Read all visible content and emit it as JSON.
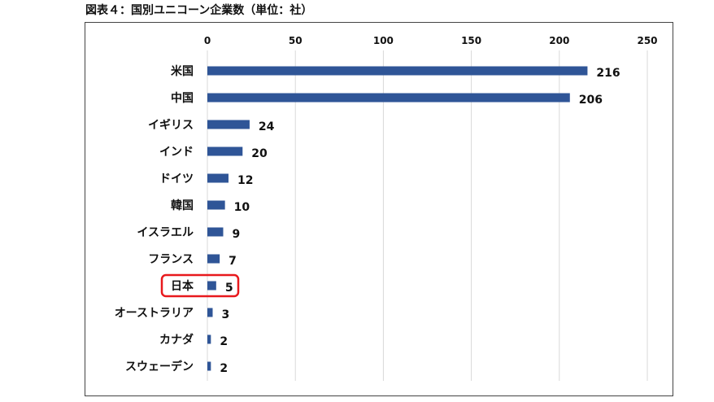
{
  "title": "図表４：国別ユニコーン企業数（単位：社）",
  "chart_data": {
    "type": "bar",
    "orientation": "horizontal",
    "categories": [
      "米国",
      "中国",
      "イギリス",
      "インド",
      "ドイツ",
      "韓国",
      "イスラエル",
      "フランス",
      "日本",
      "オーストラリア",
      "カナダ",
      "スウェーデン"
    ],
    "values": [
      216,
      206,
      24,
      20,
      12,
      10,
      9,
      7,
      5,
      3,
      2,
      2
    ],
    "xlim": [
      0,
      250
    ],
    "xticks": [
      0,
      50,
      100,
      150,
      200,
      250
    ],
    "x_axis_position": "top",
    "grid": true,
    "highlight_category": "日本",
    "bar_color": "#2f5597",
    "highlight_color": "#e8191d",
    "title": "図表４：国別ユニコーン企業数（単位：社）",
    "xlabel": "",
    "ylabel": ""
  }
}
